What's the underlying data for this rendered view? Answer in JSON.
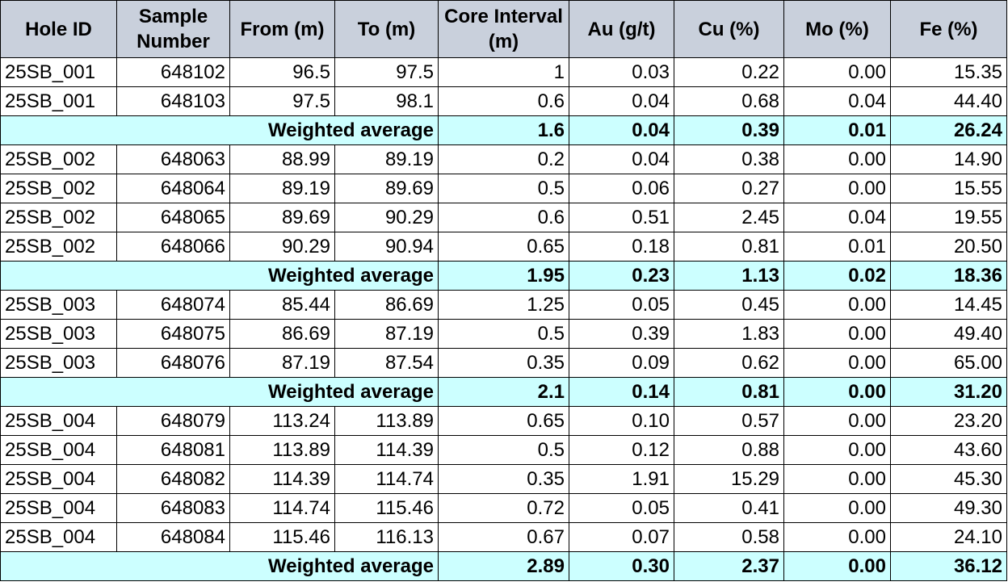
{
  "headers": [
    "Hole ID",
    "Sample Number",
    "From (m)",
    "To (m)",
    "Core Interval (m)",
    "Au (g/t)",
    "Cu (%)",
    "Mo (%)",
    "Fe (%)"
  ],
  "rows": [
    {
      "type": "sample",
      "cells": [
        "25SB_001",
        "648102",
        "96.5",
        "97.5",
        "1",
        "0.03",
        "0.22",
        "0.00",
        "15.35"
      ]
    },
    {
      "type": "sample",
      "cells": [
        "25SB_001",
        "648103",
        "97.5",
        "98.1",
        "0.6",
        "0.04",
        "0.68",
        "0.04",
        "44.40"
      ]
    },
    {
      "type": "avg",
      "label": "Weighted average",
      "cells": [
        "1.6",
        "0.04",
        "0.39",
        "0.01",
        "26.24"
      ]
    },
    {
      "type": "sample",
      "cells": [
        "25SB_002",
        "648063",
        "88.99",
        "89.19",
        "0.2",
        "0.04",
        "0.38",
        "0.00",
        "14.90"
      ]
    },
    {
      "type": "sample",
      "cells": [
        "25SB_002",
        "648064",
        "89.19",
        "89.69",
        "0.5",
        "0.06",
        "0.27",
        "0.00",
        "15.55"
      ]
    },
    {
      "type": "sample",
      "cells": [
        "25SB_002",
        "648065",
        "89.69",
        "90.29",
        "0.6",
        "0.51",
        "2.45",
        "0.04",
        "19.55"
      ]
    },
    {
      "type": "sample",
      "cells": [
        "25SB_002",
        "648066",
        "90.29",
        "90.94",
        "0.65",
        "0.18",
        "0.81",
        "0.01",
        "20.50"
      ]
    },
    {
      "type": "avg",
      "label": "Weighted average",
      "cells": [
        "1.95",
        "0.23",
        "1.13",
        "0.02",
        "18.36"
      ]
    },
    {
      "type": "sample",
      "cells": [
        "25SB_003",
        "648074",
        "85.44",
        "86.69",
        "1.25",
        "0.05",
        "0.45",
        "0.00",
        "14.45"
      ]
    },
    {
      "type": "sample",
      "cells": [
        "25SB_003",
        "648075",
        "86.69",
        "87.19",
        "0.5",
        "0.39",
        "1.83",
        "0.00",
        "49.40"
      ]
    },
    {
      "type": "sample",
      "cells": [
        "25SB_003",
        "648076",
        "87.19",
        "87.54",
        "0.35",
        "0.09",
        "0.62",
        "0.00",
        "65.00"
      ]
    },
    {
      "type": "avg",
      "label": "Weighted average",
      "cells": [
        "2.1",
        "0.14",
        "0.81",
        "0.00",
        "31.20"
      ]
    },
    {
      "type": "sample",
      "cells": [
        "25SB_004",
        "648079",
        "113.24",
        "113.89",
        "0.65",
        "0.10",
        "0.57",
        "0.00",
        "23.20"
      ]
    },
    {
      "type": "sample",
      "cells": [
        "25SB_004",
        "648081",
        "113.89",
        "114.39",
        "0.5",
        "0.12",
        "0.88",
        "0.00",
        "43.60"
      ]
    },
    {
      "type": "sample",
      "cells": [
        "25SB_004",
        "648082",
        "114.39",
        "114.74",
        "0.35",
        "1.91",
        "15.29",
        "0.00",
        "45.30"
      ]
    },
    {
      "type": "sample",
      "cells": [
        "25SB_004",
        "648083",
        "114.74",
        "115.46",
        "0.72",
        "0.05",
        "0.41",
        "0.00",
        "49.30"
      ]
    },
    {
      "type": "sample",
      "cells": [
        "25SB_004",
        "648084",
        "115.46",
        "116.13",
        "0.67",
        "0.07",
        "0.58",
        "0.00",
        "24.10"
      ]
    },
    {
      "type": "avg",
      "label": "Weighted average",
      "cells": [
        "2.89",
        "0.30",
        "2.37",
        "0.00",
        "36.12"
      ]
    }
  ],
  "colors": {
    "header_bg": "#c9d0dc",
    "average_row_bg": "#ccffff",
    "border": "#000000"
  }
}
